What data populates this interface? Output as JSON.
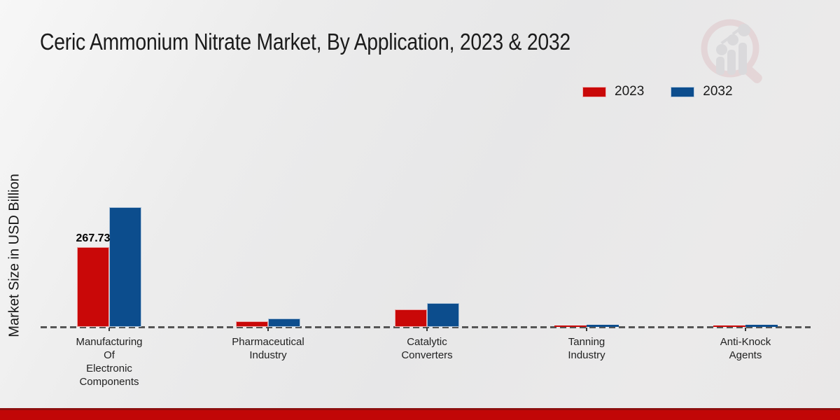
{
  "title": "Ceric Ammonium Nitrate Market, By Application, 2023 & 2032",
  "ylabel": "Market Size in USD Billion",
  "colors": {
    "series_2023": "#c90808",
    "series_2032": "#0c4d8d",
    "baseline_dash": "#565656",
    "bottom_band": "#c10606",
    "bottom_band_edge": "#8d0f0f",
    "background": "#e9e9e9"
  },
  "chart_data": {
    "type": "bar",
    "title": "Ceric Ammonium Nitrate Market, By Application, 2023 & 2032",
    "xlabel": "",
    "ylabel": "Market Size in USD Billion",
    "categories": [
      "Manufacturing Of Electronic Components",
      "Pharmaceutical Industry",
      "Catalytic Converters",
      "Tanning Industry",
      "Anti-Knock Agents"
    ],
    "category_lines": [
      [
        "Manufacturing",
        "Of",
        "Electronic",
        "Components"
      ],
      [
        "Pharmaceutical",
        "Industry"
      ],
      [
        "Catalytic",
        "Converters"
      ],
      [
        "Tanning",
        "Industry"
      ],
      [
        "Anti-Knock",
        "Agents"
      ]
    ],
    "series": [
      {
        "name": "2023",
        "color": "#c90808",
        "values": [
          267.73,
          19,
          58,
          4,
          5
        ]
      },
      {
        "name": "2032",
        "color": "#0c4d8d",
        "values": [
          403,
          28,
          79,
          7,
          7
        ]
      }
    ],
    "annotations": [
      {
        "category_index": 0,
        "series_index": 0,
        "text": "267.73"
      }
    ],
    "ylim": [
      0,
      420
    ],
    "grid": false,
    "y_axis_ticks_visible": false,
    "baseline_style": "dashed",
    "legend_position": "top-right"
  },
  "watermark": {
    "name": "magnifier-bar-chart-logo"
  }
}
